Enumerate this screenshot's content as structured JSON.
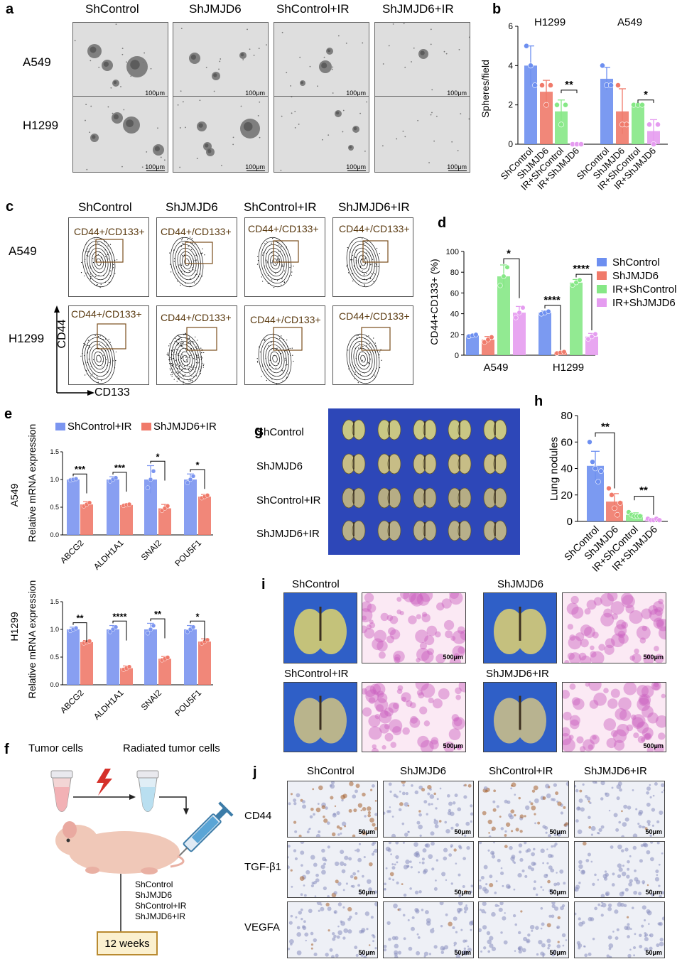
{
  "panels": {
    "a": {
      "label": "a",
      "cols": [
        "ShControl",
        "ShJMJD6",
        "ShControl+IR",
        "ShJMJD6+IR"
      ],
      "rows": [
        "A549",
        "H1299"
      ],
      "scale": "100μm"
    },
    "b": {
      "label": "b",
      "groups": [
        "H1299",
        "A549"
      ],
      "ylabel": "Spheres/field",
      "xlabels": [
        "ShControl",
        "ShJMJD6",
        "IR+ShControl",
        "IR+ShJMJD6",
        "ShControl",
        "ShJMJD6",
        "IR+ShControl",
        "IR+ShJMJD6"
      ],
      "sig": [
        "**",
        "*"
      ]
    },
    "c": {
      "label": "c",
      "cols": [
        "ShControl",
        "ShJMJD6",
        "ShControl+IR",
        "ShJMJD6+IR"
      ],
      "rows": [
        "A549",
        "H1299"
      ],
      "gate": "CD44+/CD133+",
      "yaxis": "CD44",
      "xaxis": "CD133"
    },
    "d": {
      "label": "d",
      "ylabel": "CD44+CD133+ (%)",
      "groups": [
        "A549",
        "H1299"
      ],
      "legend": [
        "ShControl",
        "ShJMJD6",
        "IR+ShControl",
        "IR+ShJMJD6"
      ],
      "sig": [
        "*",
        "****",
        "****"
      ]
    },
    "e": {
      "label": "e",
      "legend": [
        "ShControl+IR",
        "ShJMJD6+IR"
      ],
      "top_cell": "A549",
      "bottom_cell": "H1299",
      "ylabel": "Relative mRNA expression",
      "genes": [
        "ABCG2",
        "ALDH1A1",
        "SNAI2",
        "POU5F1"
      ],
      "sig_top": [
        "***",
        "***",
        "*",
        "*"
      ],
      "sig_bottom": [
        "**",
        "****",
        "**",
        "*"
      ]
    },
    "f": {
      "label": "f",
      "tumor": "Tumor cells",
      "radiated": "Radiated tumor cells",
      "groups": [
        "ShControl",
        "ShJMJD6",
        "ShControl+IR",
        "ShJMJD6+IR"
      ],
      "time": "12 weeks"
    },
    "g": {
      "label": "g",
      "rows": [
        "ShControl",
        "ShJMJD6",
        "ShControl+IR",
        "ShJMJD6+IR"
      ]
    },
    "h": {
      "label": "h",
      "ylabel": "Lung nodules",
      "xlabels": [
        "ShControl",
        "ShJMJD6",
        "IR+ShControl",
        "IR+ShJMJD6"
      ],
      "sig": [
        "**",
        "**"
      ]
    },
    "i": {
      "label": "i",
      "groups": [
        "ShControl",
        "ShJMJD6",
        "ShControl+IR",
        "ShJMJD6+IR"
      ],
      "scale": "500μm"
    },
    "j": {
      "label": "j",
      "cols": [
        "ShControl",
        "ShJMJD6",
        "ShControl+IR",
        "ShJMJD6+IR"
      ],
      "rows": [
        "CD44",
        "TGF-β1",
        "VEGFA"
      ],
      "scale": "50μm"
    }
  },
  "chart_data": [
    {
      "panel": "b",
      "type": "bar",
      "categories": [
        "ShControl",
        "ShJMJD6",
        "IR+ShControl",
        "IR+ShJMJD6",
        "ShControl",
        "ShJMJD6",
        "IR+ShControl",
        "IR+ShJMJD6"
      ],
      "groups": [
        "H1299",
        "A549"
      ],
      "values": [
        4.0,
        2.67,
        1.67,
        0.0,
        3.33,
        1.67,
        2.0,
        0.67
      ],
      "errors": [
        1.0,
        0.58,
        0.58,
        0.0,
        0.58,
        1.15,
        0.0,
        0.58
      ],
      "points": [
        [
          5,
          4,
          3
        ],
        [
          3,
          2,
          3
        ],
        [
          2,
          1,
          2
        ],
        [
          0,
          0,
          0
        ],
        [
          4,
          3,
          3
        ],
        [
          3,
          1,
          1
        ],
        [
          2,
          2,
          2
        ],
        [
          1,
          0,
          1
        ]
      ],
      "colors": [
        "#6d8ff0",
        "#f07a6a",
        "#86e886",
        "#e59cf0"
      ],
      "ylabel": "Spheres/field",
      "ylim": [
        0,
        6
      ],
      "yticks": [
        0,
        2,
        4,
        6
      ]
    },
    {
      "panel": "d",
      "type": "bar",
      "categories": [
        "A549",
        "H1299"
      ],
      "series": [
        {
          "name": "ShControl",
          "values": [
            19,
            41
          ],
          "errors": [
            1,
            1.5
          ],
          "color": "#6d8ff0"
        },
        {
          "name": "ShJMJD6",
          "values": [
            15,
            2.5
          ],
          "errors": [
            3,
            0.8
          ],
          "color": "#f07a6a"
        },
        {
          "name": "IR+ShControl",
          "values": [
            76,
            70
          ],
          "errors": [
            11,
            3
          ],
          "color": "#86e886"
        },
        {
          "name": "IR+ShJMJD6",
          "values": [
            41,
            18
          ],
          "errors": [
            6,
            3
          ],
          "color": "#e59cf0"
        }
      ],
      "ylabel": "CD44+CD133+ (%)",
      "ylim": [
        0,
        100
      ],
      "yticks": [
        0,
        20,
        40,
        60,
        80,
        100
      ]
    },
    {
      "panel": "e-top",
      "type": "bar",
      "title": "A549",
      "categories": [
        "ABCG2",
        "ALDH1A1",
        "SNAI2",
        "POU5F1"
      ],
      "series": [
        {
          "name": "ShControl+IR",
          "values": [
            1.0,
            1.0,
            1.0,
            1.0
          ],
          "errors": [
            0.02,
            0.05,
            0.25,
            0.1
          ],
          "color": "#7b95f0"
        },
        {
          "name": "ShJMJD6+IR",
          "values": [
            0.55,
            0.54,
            0.48,
            0.69
          ],
          "errors": [
            0.05,
            0.02,
            0.07,
            0.04
          ],
          "color": "#f07a6a"
        }
      ],
      "ylabel": "Relative mRNA expression",
      "ylim": [
        0,
        1.5
      ],
      "yticks": [
        0.0,
        0.5,
        1.0,
        1.5
      ]
    },
    {
      "panel": "e-bottom",
      "type": "bar",
      "title": "H1299",
      "categories": [
        "ABCG2",
        "ALDH1A1",
        "SNAI2",
        "POU5F1"
      ],
      "series": [
        {
          "name": "ShControl+IR",
          "values": [
            1.0,
            1.0,
            1.0,
            1.0
          ],
          "errors": [
            0.04,
            0.07,
            0.11,
            0.07
          ],
          "color": "#7b95f0"
        },
        {
          "name": "ShJMJD6+IR",
          "values": [
            0.77,
            0.3,
            0.47,
            0.78
          ],
          "errors": [
            0.03,
            0.04,
            0.04,
            0.05
          ],
          "color": "#f07a6a"
        }
      ],
      "ylabel": "Relative mRNA expression",
      "ylim": [
        0,
        1.5
      ],
      "yticks": [
        0.0,
        0.5,
        1.0,
        1.5
      ]
    },
    {
      "panel": "h",
      "type": "bar",
      "categories": [
        "ShControl",
        "ShJMJD6",
        "IR+ShControl",
        "IR+ShJMJD6"
      ],
      "values": [
        42,
        15,
        5,
        1.5
      ],
      "errors": [
        11,
        6,
        1.5,
        1
      ],
      "points": [
        [
          60,
          45,
          40,
          30,
          38
        ],
        [
          25,
          20,
          10,
          5,
          14
        ],
        [
          7,
          5,
          4,
          4,
          4
        ],
        [
          2,
          1,
          1,
          2,
          1
        ]
      ],
      "colors": [
        "#6d8ff0",
        "#f07a6a",
        "#86e886",
        "#e59cf0"
      ],
      "ylabel": "Lung nodules",
      "ylim": [
        0,
        80
      ],
      "yticks": [
        0,
        20,
        40,
        60,
        80
      ]
    }
  ]
}
